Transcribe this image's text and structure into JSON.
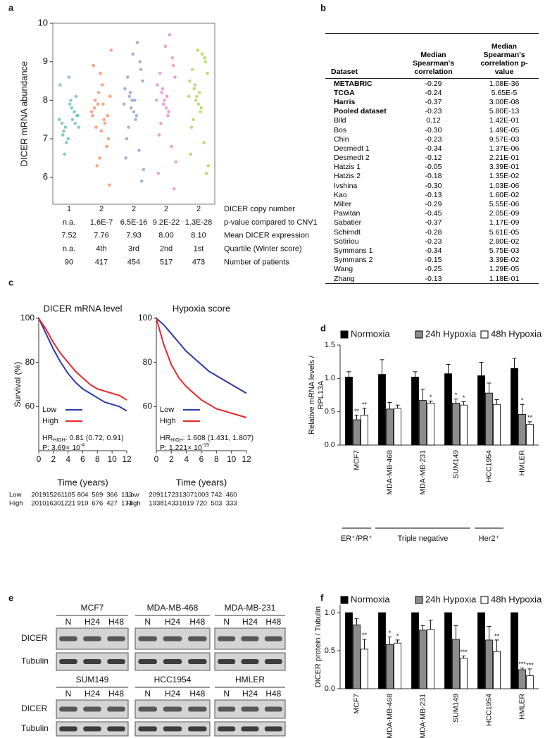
{
  "panel_labels": [
    "a",
    "b",
    "c",
    "d",
    "e",
    "f"
  ],
  "chart_data": [
    {
      "type": "strip",
      "ylabel": "DICER mRNA abundance",
      "ylim": [
        5.3,
        10
      ],
      "yticks": [
        6,
        7,
        8,
        9,
        10
      ],
      "categories": [
        "1",
        "2",
        "2",
        "2",
        "2"
      ],
      "categories_label": "DICER copy number",
      "series": [
        {
          "color": "#66c2a5",
          "values": [
            7.5,
            7.3,
            7.8,
            7.6,
            7.2,
            7.9,
            8.1,
            7.4,
            7.0,
            7.7,
            8.4,
            6.9,
            7.5,
            7.3,
            6.6,
            8.0,
            7.6,
            7.1,
            8.6,
            7.4
          ]
        },
        {
          "color": "#fc8d62",
          "values": [
            7.7,
            7.9,
            7.5,
            8.1,
            7.3,
            8.4,
            7.0,
            7.8,
            8.7,
            6.8,
            7.6,
            8.2,
            7.4,
            9.3,
            6.3,
            7.9,
            5.8,
            8.0,
            7.2,
            7.6,
            8.9,
            6.5
          ]
        },
        {
          "color": "#8da0cb",
          "values": [
            7.9,
            8.2,
            7.6,
            8.5,
            7.3,
            8.0,
            8.8,
            7.0,
            9.2,
            6.7,
            8.3,
            7.8,
            9.5,
            6.2,
            8.1,
            7.5,
            5.9,
            8.6,
            7.7,
            9.0,
            6.5,
            8.0
          ]
        },
        {
          "color": "#e78ac3",
          "values": [
            8.0,
            8.3,
            7.7,
            8.6,
            7.4,
            8.1,
            8.9,
            7.1,
            9.4,
            6.8,
            8.4,
            7.9,
            9.7,
            6.4,
            8.2,
            7.6,
            5.7,
            8.7,
            7.8,
            9.1,
            6.1,
            8.0
          ]
        },
        {
          "color": "#a6d854",
          "values": [
            8.1,
            8.4,
            7.8,
            8.7,
            7.5,
            8.2,
            9.0,
            7.3,
            9.3,
            6.9,
            8.5,
            8.0,
            9.2,
            6.3,
            8.3,
            7.7,
            6.1,
            8.8,
            7.9,
            9.1,
            6.6,
            8.1
          ]
        }
      ],
      "stats": [
        {
          "label": "p-value compared to CNV1",
          "values": [
            "n.a.",
            "1.6E-7",
            "6.5E-16",
            "9.2E-22",
            "1.3E-28"
          ]
        },
        {
          "label": "Mean DICER expression",
          "values": [
            "7.52",
            "7.76",
            "7.93",
            "8.00",
            "8.10"
          ]
        },
        {
          "label": "Quartile (Winter score)",
          "values": [
            "n.a.",
            "4th",
            "3rd",
            "2nd",
            "1st"
          ]
        },
        {
          "label": "Number of patients",
          "values": [
            "90",
            "417",
            "454",
            "517",
            "473"
          ]
        }
      ]
    },
    {
      "type": "line",
      "title": "DICER mRNA level",
      "xlabel": "Time (years)",
      "ylabel": "Survival (%)",
      "xlim": [
        0,
        12
      ],
      "xticks": [
        0,
        2,
        4,
        6,
        8,
        10,
        12
      ],
      "ylim": [
        40,
        100
      ],
      "yticks": [
        60,
        80,
        100
      ],
      "x": [
        0,
        1,
        2,
        3,
        4,
        5,
        6,
        7,
        8,
        9,
        10,
        11,
        12
      ],
      "series": [
        {
          "name": "Low",
          "color": "#2b3aa8",
          "values": [
            100,
            93,
            86,
            80,
            75,
            71,
            68,
            66,
            64,
            62,
            61,
            60,
            58
          ]
        },
        {
          "name": "High",
          "color": "#e8262b",
          "values": [
            100,
            95,
            89,
            84,
            80,
            76,
            73,
            70,
            68,
            67,
            66,
            65,
            63
          ]
        }
      ],
      "hr": {
        "label": "HR",
        "subscript": "HIGH",
        "text": ": 0.81 (0.72, 0.91)"
      },
      "p": {
        "text": "P: 3.69× 10",
        "exponent": "-4"
      },
      "risk_table": [
        {
          "label": "Low",
          "values": [
            2019,
            1526,
            1105,
            804,
            569,
            366,
            133
          ]
        },
        {
          "label": "High",
          "values": [
            2010,
            1630,
            1221,
            919,
            676,
            427,
            173
          ]
        }
      ]
    },
    {
      "type": "line",
      "title": "Hypoxia score",
      "xlabel": "Time (years)",
      "xlim": [
        0,
        12
      ],
      "xticks": [
        0,
        2,
        4,
        6,
        8,
        10,
        12
      ],
      "ylim": [
        40,
        100
      ],
      "yticks": [
        60,
        80,
        100
      ],
      "x": [
        0,
        1,
        2,
        3,
        4,
        5,
        6,
        7,
        8,
        9,
        10,
        11,
        12
      ],
      "series": [
        {
          "name": "Low",
          "color": "#2b3aa8",
          "values": [
            100,
            97,
            93,
            89,
            85,
            82,
            79,
            76,
            74,
            72,
            70,
            68,
            66
          ]
        },
        {
          "name": "High",
          "color": "#e8262b",
          "values": [
            100,
            88,
            79,
            73,
            69,
            66,
            63,
            61,
            59,
            58,
            57,
            56,
            55
          ]
        }
      ],
      "hr": {
        "label": "HR",
        "subscript": "HIGH",
        "text": ": 1.608 (1.431, 1.807)"
      },
      "p": {
        "text": "P: 1.221× 10",
        "exponent": "-15"
      },
      "risk_table": [
        {
          "label": "Low",
          "values": [
            2091,
            1723,
            1307,
            1003,
            742,
            460
          ]
        },
        {
          "label": "High",
          "values": [
            1938,
            1433,
            1019,
            720,
            503,
            333
          ]
        }
      ]
    },
    {
      "type": "bar",
      "ylabel": [
        "Relative mRNA levels /",
        "RPL13A"
      ],
      "ylim": [
        0,
        1.5
      ],
      "yticks": [
        {
          "value": 0,
          "label": "0.0"
        },
        0.5,
        {
          "value": 1,
          "label": "1.0"
        },
        1.5
      ],
      "categories": [
        "MCF7",
        "MDA-MB-468",
        "MDA-MB-231",
        "SUM149",
        "HCC1954",
        "HMLER"
      ],
      "series": [
        {
          "name": "Normoxia",
          "color": "#000000",
          "values": [
            1.02,
            1.06,
            1.02,
            1.07,
            1.04,
            1.15
          ],
          "errors": [
            0.08,
            0.22,
            0.08,
            0.14,
            0.2,
            0.15
          ]
        },
        {
          "name": "24h Hypoxia",
          "color": "#8c8c8c",
          "values": [
            0.38,
            0.54,
            0.67,
            0.63,
            0.78,
            0.46
          ],
          "errors": [
            0.07,
            0.1,
            0.17,
            0.06,
            0.15,
            0.15
          ],
          "stars": [
            "**",
            null,
            null,
            "*",
            null,
            "*"
          ]
        },
        {
          "name": "48h Hypoxia",
          "color": "#ffffff",
          "values": [
            0.45,
            0.55,
            0.63,
            0.6,
            0.61,
            0.31
          ],
          "errors": [
            0.1,
            0.05,
            0.03,
            0.05,
            0.07,
            0.04
          ],
          "stars": [
            "**",
            null,
            "*",
            "*",
            null,
            "**"
          ]
        }
      ],
      "group_labels": [
        "ER⁺/PR⁺",
        "Triple negative",
        "Her2⁺"
      ]
    },
    {
      "type": "bar",
      "ylabel": [
        "DICER protein / Tubulin"
      ],
      "ylim": [
        0,
        1.1
      ],
      "yticks": [
        {
          "value": 0,
          "label": "0.0"
        },
        0.5,
        {
          "value": 1,
          "label": "1.0"
        }
      ],
      "categories": [
        "MCF7",
        "MDA-MB-468",
        "MDA-MB-231",
        "SUM149",
        "HCC1954",
        "HMLER"
      ],
      "series": [
        {
          "name": "Normoxia",
          "color": "#000000",
          "values": [
            1.0,
            1.0,
            1.0,
            1.0,
            1.0,
            1.0
          ]
        },
        {
          "name": "24h Hypoxia",
          "color": "#8c8c8c",
          "values": [
            0.84,
            0.58,
            0.77,
            0.65,
            0.64,
            0.25
          ],
          "errors": [
            0.08,
            0.1,
            0.06,
            0.18,
            0.18,
            0.02
          ],
          "stars": [
            null,
            "*",
            null,
            null,
            null,
            "***"
          ]
        },
        {
          "name": "48h Hypoxia",
          "color": "#ffffff",
          "values": [
            0.52,
            0.6,
            0.78,
            0.4,
            0.49,
            0.17
          ],
          "errors": [
            0.13,
            0.04,
            0.12,
            0.03,
            0.15,
            0.09
          ],
          "stars": [
            "**",
            "*",
            null,
            "***",
            "**",
            "***"
          ]
        }
      ]
    }
  ],
  "correlation_table": {
    "headers": [
      "Dataset",
      "Median Spearman's correlation",
      "Median Spearman's correlation p-value"
    ],
    "rows": [
      [
        "METABRIC",
        "-0.29",
        "1.08E-36"
      ],
      [
        "TCGA",
        "-0.24",
        "5.65E-5"
      ],
      [
        "Harris",
        "-0.37",
        "3.00E-08"
      ],
      [
        "Pooled dataset",
        "-0.23",
        "5.80E-13"
      ],
      [
        "Bild",
        "0.12",
        "1.42E-01"
      ],
      [
        "Bos",
        "-0.30",
        "1.49E-05"
      ],
      [
        "Chin",
        "-0.23",
        "9.57E-03"
      ],
      [
        "Desmedt 1",
        "-0.34",
        "1.37E-06"
      ],
      [
        "Desmedt 2",
        "-0.12",
        "2.21E-01"
      ],
      [
        "Hatzis 1",
        "-0.05",
        "3.39E-01"
      ],
      [
        "Hatzis 2",
        "-0.18",
        "1.35E-02"
      ],
      [
        "Ivshina",
        "-0.30",
        "1.03E-06"
      ],
      [
        "Kao",
        "-0.13",
        "1.60E-02"
      ],
      [
        "Miller",
        "-0.29",
        "5.55E-06"
      ],
      [
        "Pawitan",
        "-0.45",
        "2.05E-09"
      ],
      [
        "Sabatier",
        "-0.37",
        "1.17E-09"
      ],
      [
        "Schimdt",
        "-0.28",
        "5.61E-05"
      ],
      [
        "Sotiriou",
        "-0.23",
        "2.80E-02"
      ],
      [
        "Symmans 1",
        "-0.34",
        "5.75E-03"
      ],
      [
        "Symmans 2",
        "-0.15",
        "3.39E-02"
      ],
      [
        "Wang",
        "-0.25",
        "1.29E-05"
      ],
      [
        "Zhang",
        "-0.13",
        "1.18E-01"
      ]
    ]
  },
  "blots": {
    "cell_lines": [
      "MCF7",
      "MDA-MB-468",
      "MDA-MB-231",
      "SUM149",
      "HCC1954",
      "HMLER"
    ],
    "lanes": [
      "N",
      "H24",
      "H48"
    ],
    "rows": [
      "DICER",
      "Tubulin"
    ]
  }
}
